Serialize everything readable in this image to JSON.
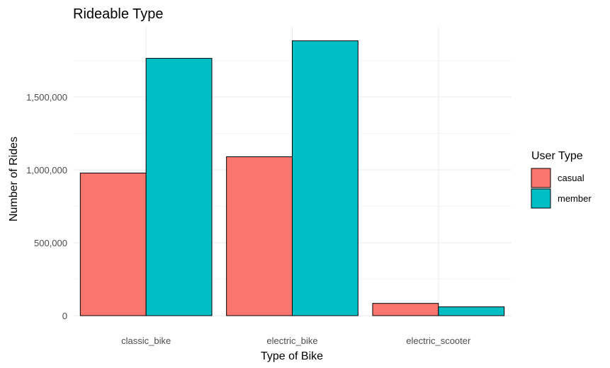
{
  "chart_data": {
    "type": "bar",
    "title": "Rideable Type",
    "xlabel": "Type of Bike",
    "ylabel": "Number of Rides",
    "categories": [
      "classic_bike",
      "electric_bike",
      "electric_scooter"
    ],
    "series": [
      {
        "name": "casual",
        "color": "#F8766D",
        "values": [
          978000,
          1090000,
          84000
        ]
      },
      {
        "name": "member",
        "color": "#00BFC4",
        "values": [
          1765000,
          1885000,
          60000
        ]
      }
    ],
    "ylim": [
      0,
      1950000
    ],
    "yticks": [
      0,
      500000,
      1000000,
      1500000
    ],
    "ytick_labels": [
      "0",
      "500,000",
      "1,000,000",
      "1,500,000"
    ],
    "grid": true,
    "legend": {
      "title": "User Type",
      "position": "right"
    }
  }
}
